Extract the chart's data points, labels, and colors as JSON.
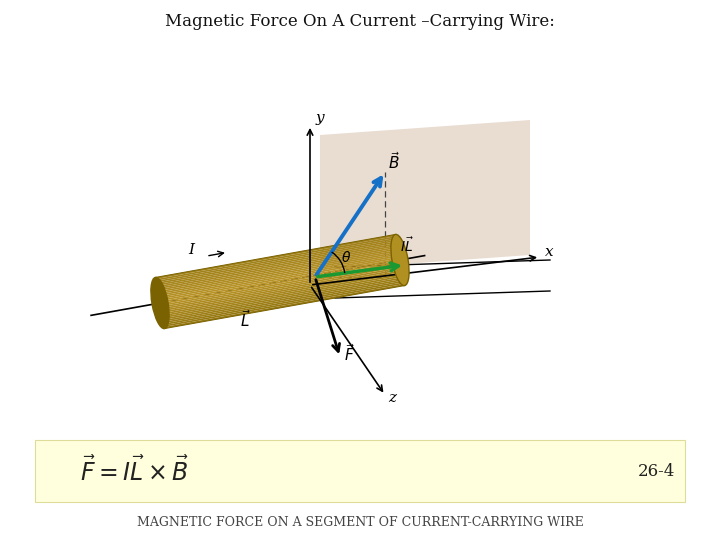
{
  "title": "Magnetic Force On A Current –Carrying Wire:",
  "title_fontsize": 12,
  "background_color": "#ffffff",
  "formula_box_color": "#ffffdd",
  "formula_box_edge": "#dddd99",
  "bottom_label": "Magnetic force on a segment of current-carrying wire",
  "equation_number": "26-4",
  "cylinder_color_dark": "#7A6200",
  "cylinder_color_light": "#D4AA3A",
  "cylinder_color_mid": "#A88A10",
  "cylinder_color_shadow": "#5A4800",
  "plane_color": "#D8C0AC",
  "plane_alpha": 0.55,
  "B_arrow_color": "#1570C8",
  "IL_arrow_color": "#1A9932",
  "axis_color": "#000000",
  "dashed_color": "#444444",
  "ox": 310,
  "oy": 255,
  "diagram_scale": 1.0
}
